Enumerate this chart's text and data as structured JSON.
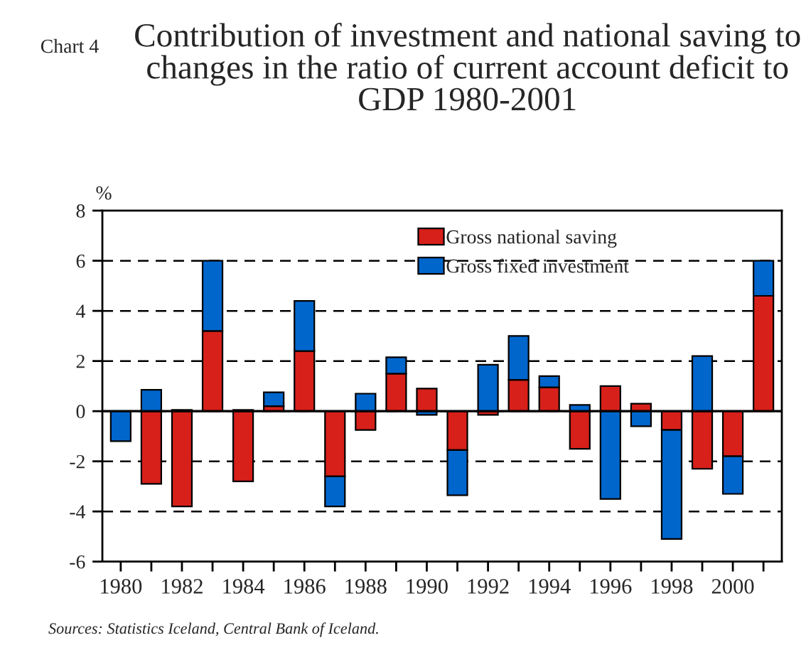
{
  "chart_data": {
    "type": "bar",
    "title": "Contribution of investment and national saving to changes in the ratio of current account deficit to GDP 1980-2001",
    "ylabel": "%",
    "categories": [
      "1980",
      null,
      "1982",
      null,
      "1984",
      null,
      "1986",
      null,
      "1988",
      null,
      "1990",
      null,
      "1992",
      null,
      "1994",
      null,
      "1996",
      null,
      "1998",
      null,
      "2000",
      null
    ],
    "series": [
      {
        "name": "Gross national saving",
        "color": "#d7201a",
        "values": [
          null,
          -2.9,
          -3.8,
          3.2,
          -2.8,
          0.2,
          2.4,
          -2.6,
          -0.75,
          1.5,
          0.9,
          -1.55,
          -0.15,
          1.25,
          0.95,
          -1.5,
          1.0,
          0.3,
          -0.75,
          -2.3,
          -1.8,
          4.6
        ]
      },
      {
        "name": "Gross fixed investment",
        "color": "#0066cc",
        "values": [
          -1.2,
          0.85,
          0.05,
          2.8,
          0.05,
          0.55,
          2.0,
          -1.2,
          0.7,
          0.65,
          -0.15,
          -1.8,
          1.85,
          1.75,
          0.45,
          0.25,
          -3.5,
          -0.6,
          -4.35,
          2.2,
          -1.5,
          1.4
        ]
      }
    ],
    "stacked": true,
    "ylim": [
      -6,
      8
    ],
    "yticks": [
      -6,
      -4,
      -2,
      0,
      2,
      4,
      6,
      8
    ],
    "grid": "y",
    "legend": "top",
    "annotations": [
      "Chart 4",
      "Sources: Statistics Iceland, Central Bank of Iceland."
    ]
  }
}
